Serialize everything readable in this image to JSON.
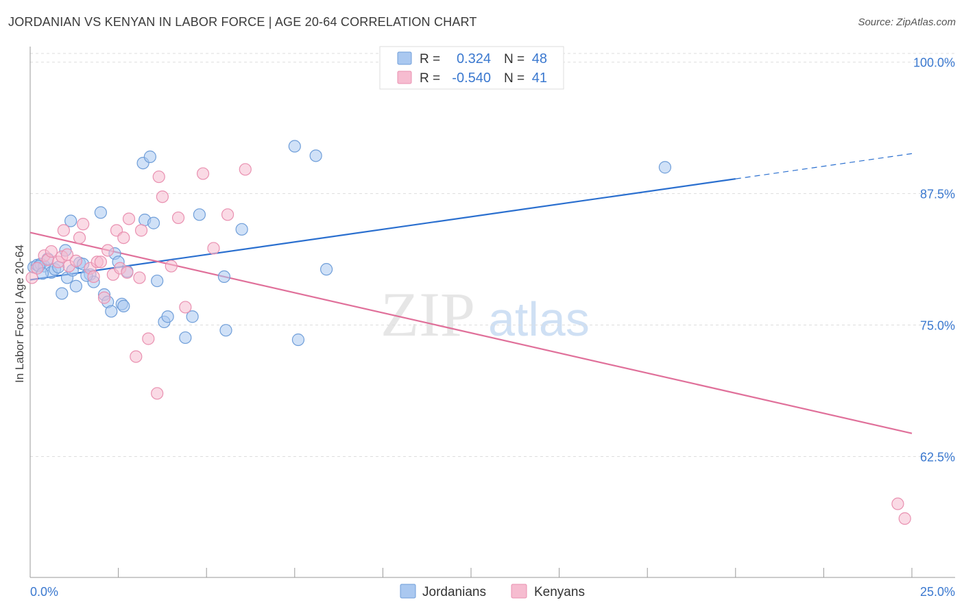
{
  "page": {
    "title": "JORDANIAN VS KENYAN IN LABOR FORCE | AGE 20-64 CORRELATION CHART",
    "source": "Source: ZipAtlas.com"
  },
  "watermark": {
    "zip": "ZIP",
    "atlas": "atlas"
  },
  "colors": {
    "blue_fill": "#aac8f0",
    "blue_stroke": "#6f9ed9",
    "blue_line": "#2a6fcf",
    "blue_text": "#3a78cf",
    "pink_fill": "#f6bcd0",
    "pink_stroke": "#e990b0",
    "pink_line": "#e0709a",
    "grid": "#dddddd",
    "axis": "#999999"
  },
  "chart_data": {
    "type": "scatter",
    "title": "JORDANIAN VS KENYAN IN LABOR FORCE | AGE 20-64 CORRELATION CHART",
    "xlabel": "",
    "ylabel": "In Labor Force | Age 20-64",
    "xlim": [
      0,
      25
    ],
    "ylim": [
      51,
      102
    ],
    "x_tick_labels": {
      "min": "0.0%",
      "max": "25.0%"
    },
    "y_ticks": [
      100.0,
      87.5,
      75.0,
      62.5
    ],
    "y_tick_labels": [
      "100.0%",
      "87.5%",
      "75.0%",
      "62.5%"
    ],
    "legend_position": "top-center",
    "legend": [
      {
        "r_label": "R =",
        "r_value": "0.324",
        "n_label": "N =",
        "n_value": "48"
      },
      {
        "r_label": "R =",
        "r_value": "-0.540",
        "n_label": "N =",
        "n_value": "41"
      }
    ],
    "bottom_legend": [
      "Jordanians",
      "Kenyans"
    ],
    "series": [
      {
        "name": "Jordanians",
        "r": 0.324,
        "n": 48,
        "trend": {
          "x0": 0,
          "y0": 79.3,
          "x1": 20,
          "y1": 88.9,
          "dash_to_x": 25,
          "dash_to_y": 91.3
        },
        "points": [
          [
            0.1,
            80.5
          ],
          [
            0.2,
            80.7
          ],
          [
            0.3,
            80.8
          ],
          [
            0.4,
            80.6
          ],
          [
            0.5,
            81.3
          ],
          [
            0.6,
            80.0
          ],
          [
            0.7,
            80.3
          ],
          [
            0.8,
            80.5
          ],
          [
            0.9,
            78.0
          ],
          [
            1.0,
            82.1
          ],
          [
            1.05,
            79.5
          ],
          [
            1.15,
            84.9
          ],
          [
            1.2,
            80.2
          ],
          [
            1.3,
            78.7
          ],
          [
            1.4,
            80.9
          ],
          [
            1.5,
            80.8
          ],
          [
            1.7,
            79.8
          ],
          [
            1.8,
            79.1
          ],
          [
            2.0,
            85.7
          ],
          [
            2.1,
            77.9
          ],
          [
            2.2,
            77.2
          ],
          [
            2.3,
            76.3
          ],
          [
            2.4,
            81.8
          ],
          [
            2.5,
            81.0
          ],
          [
            2.6,
            77.0
          ],
          [
            2.65,
            76.8
          ],
          [
            2.75,
            80.1
          ],
          [
            3.2,
            90.4
          ],
          [
            3.25,
            85.0
          ],
          [
            3.4,
            91.0
          ],
          [
            3.5,
            84.7
          ],
          [
            3.6,
            79.2
          ],
          [
            3.8,
            75.3
          ],
          [
            3.9,
            75.8
          ],
          [
            4.4,
            73.8
          ],
          [
            4.6,
            75.8
          ],
          [
            4.8,
            85.5
          ],
          [
            5.5,
            79.6
          ],
          [
            5.55,
            74.5
          ],
          [
            6.0,
            84.1
          ],
          [
            7.5,
            92.0
          ],
          [
            7.6,
            73.6
          ],
          [
            8.1,
            91.1
          ],
          [
            8.4,
            80.3
          ],
          [
            18.0,
            90.0
          ],
          [
            0.25,
            80.6
          ],
          [
            0.35,
            79.9
          ],
          [
            1.6,
            79.7
          ]
        ]
      },
      {
        "name": "Kenyans",
        "r": -0.54,
        "n": 41,
        "trend": {
          "x0": 0,
          "y0": 83.8,
          "x1": 25,
          "y1": 64.7
        },
        "points": [
          [
            0.05,
            79.5
          ],
          [
            0.2,
            80.4
          ],
          [
            0.4,
            81.6
          ],
          [
            0.5,
            81.2
          ],
          [
            0.6,
            82.0
          ],
          [
            0.8,
            81.0
          ],
          [
            0.9,
            81.5
          ],
          [
            0.95,
            84.0
          ],
          [
            1.05,
            81.7
          ],
          [
            1.1,
            80.6
          ],
          [
            1.3,
            81.1
          ],
          [
            1.4,
            83.3
          ],
          [
            1.5,
            84.6
          ],
          [
            1.7,
            80.4
          ],
          [
            1.8,
            79.6
          ],
          [
            1.9,
            81.0
          ],
          [
            2.0,
            81.0
          ],
          [
            2.1,
            77.6
          ],
          [
            2.2,
            82.1
          ],
          [
            2.35,
            79.8
          ],
          [
            2.45,
            84.0
          ],
          [
            2.55,
            80.4
          ],
          [
            2.65,
            83.3
          ],
          [
            2.75,
            80.0
          ],
          [
            2.8,
            85.1
          ],
          [
            3.0,
            72.0
          ],
          [
            3.1,
            79.5
          ],
          [
            3.15,
            84.0
          ],
          [
            3.35,
            73.7
          ],
          [
            3.6,
            68.5
          ],
          [
            3.65,
            89.1
          ],
          [
            3.75,
            87.2
          ],
          [
            4.0,
            80.6
          ],
          [
            4.2,
            85.2
          ],
          [
            4.4,
            76.7
          ],
          [
            4.9,
            89.4
          ],
          [
            5.2,
            82.3
          ],
          [
            5.6,
            85.5
          ],
          [
            6.1,
            89.8
          ],
          [
            24.6,
            58.0
          ],
          [
            24.8,
            56.6
          ]
        ]
      }
    ]
  }
}
